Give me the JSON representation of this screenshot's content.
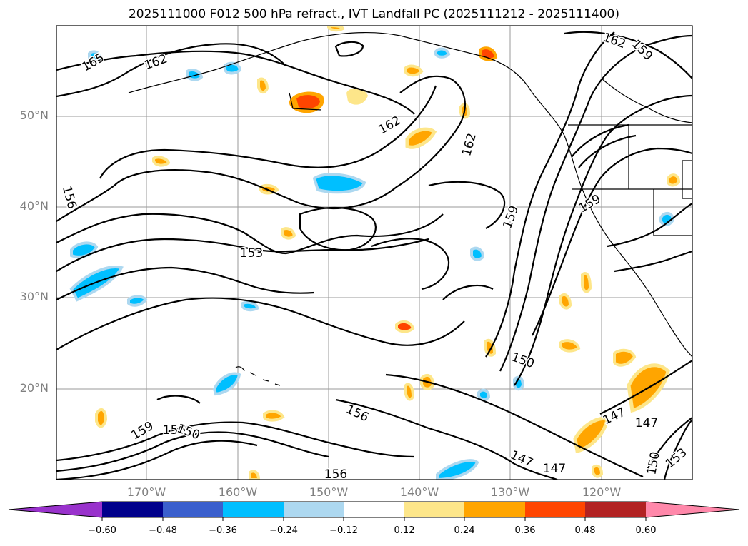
{
  "title": "2025111000 F012 500 hPa refract., IVT Landfall PC (2025111212 - 2025111400)",
  "map": {
    "lat_ticks": [
      "50°N",
      "40°N",
      "30°N",
      "20°N"
    ],
    "lon_ticks": [
      "170°W",
      "160°W",
      "150°W",
      "140°W",
      "130°W",
      "120°W"
    ],
    "grid": true,
    "contour_color": "#000000",
    "contour_labels": [
      "165",
      "162",
      "162",
      "159",
      "162",
      "162",
      "156",
      "159",
      "159",
      "153",
      "150",
      "156",
      "147",
      "147",
      "147",
      "156",
      "159",
      "156",
      "147",
      "150",
      "153",
      "150"
    ]
  },
  "colorbar": {
    "tick_labels": [
      "−0.60",
      "−0.48",
      "−0.36",
      "−0.24",
      "−0.12",
      "0.12",
      "0.24",
      "0.36",
      "0.48",
      "0.60"
    ],
    "colors": [
      "#9932cc",
      "#00008b",
      "#3a5fcd",
      "#00bfff",
      "#add8f0",
      "#ffffff",
      "#fde68a",
      "#ffa500",
      "#ff4500",
      "#b22222",
      "#ff88aa"
    ]
  }
}
